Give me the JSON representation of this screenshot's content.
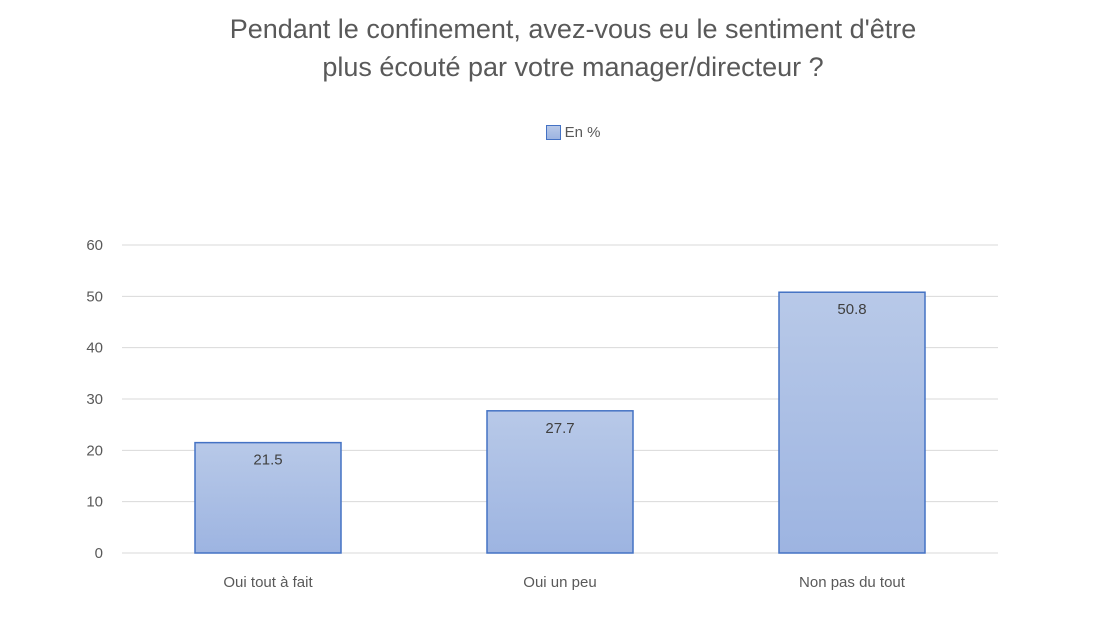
{
  "chart_data": {
    "type": "bar",
    "title_lines": [
      "Pendant le confinement, avez-vous eu le sentiment d'être",
      "plus écouté par votre manager/directeur ?"
    ],
    "categories": [
      "Oui tout à fait",
      "Oui un peu",
      "Non pas du tout"
    ],
    "series": [
      {
        "name": "En %",
        "values": [
          21.5,
          27.7,
          50.8
        ]
      }
    ],
    "data_labels": [
      "21.5",
      "27.7",
      "50.8"
    ],
    "ylim": [
      0,
      60
    ],
    "yticks": [
      0,
      10,
      20,
      30,
      40,
      50,
      60
    ],
    "ytick_labels": [
      "0",
      "10",
      "20",
      "30",
      "40",
      "50",
      "60"
    ],
    "xlabel": "",
    "ylabel": "",
    "grid": true,
    "legend_position": "top-center",
    "colors": {
      "bar_fill_top": "#b8c9e8",
      "bar_fill_bottom": "#9db4e1",
      "bar_border": "#4472c4",
      "grid": "#d9d9d9",
      "text": "#595959"
    }
  }
}
